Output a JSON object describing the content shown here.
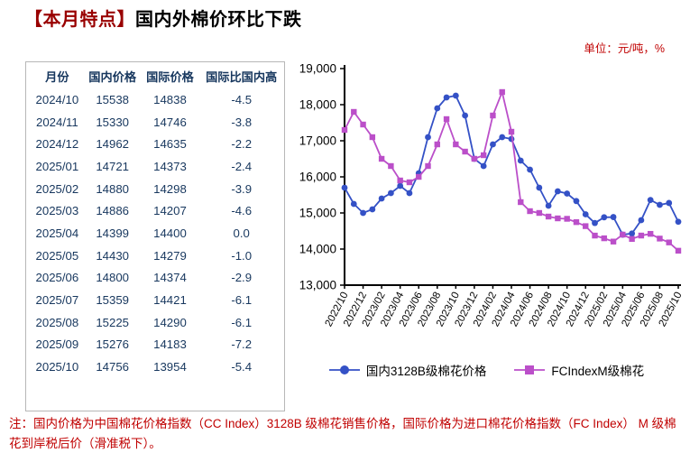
{
  "header": {
    "tag": "【本月特点】",
    "title": "国内外棉价环比下跌",
    "unit": "单位：元/吨，%"
  },
  "table": {
    "columns": [
      "月份",
      "国内价格",
      "国际价格",
      "国际比国内高"
    ],
    "rows": [
      [
        "2024/10",
        "15538",
        "14838",
        "-4.5"
      ],
      [
        "2024/11",
        "15330",
        "14746",
        "-3.8"
      ],
      [
        "2024/12",
        "14962",
        "14635",
        "-2.2"
      ],
      [
        "2025/01",
        "14721",
        "14373",
        "-2.4"
      ],
      [
        "2025/02",
        "14880",
        "14298",
        "-3.9"
      ],
      [
        "2025/03",
        "14886",
        "14207",
        "-4.6"
      ],
      [
        "2025/04",
        "14399",
        "14400",
        "0.0"
      ],
      [
        "2025/05",
        "14430",
        "14279",
        "-1.0"
      ],
      [
        "2025/06",
        "14800",
        "14374",
        "-2.9"
      ],
      [
        "2025/07",
        "15359",
        "14421",
        "-6.1"
      ],
      [
        "2025/08",
        "15225",
        "14290",
        "-6.1"
      ],
      [
        "2025/09",
        "15276",
        "14183",
        "-7.2"
      ],
      [
        "2025/10",
        "14756",
        "13954",
        "-5.4"
      ]
    ]
  },
  "chart_data": {
    "type": "line",
    "x": [
      "2022/10",
      "2022/11",
      "2022/12",
      "2023/01",
      "2023/02",
      "2023/03",
      "2023/04",
      "2023/05",
      "2023/06",
      "2023/07",
      "2023/08",
      "2023/09",
      "2023/10",
      "2023/11",
      "2023/12",
      "2024/01",
      "2024/02",
      "2024/03",
      "2024/04",
      "2024/05",
      "2024/06",
      "2024/07",
      "2024/08",
      "2024/09",
      "2024/10",
      "2024/11",
      "2024/12",
      "2025/01",
      "2025/02",
      "2025/03",
      "2025/04",
      "2025/05",
      "2025/06",
      "2025/07",
      "2025/08",
      "2025/09",
      "2025/10"
    ],
    "x_tick_every": 2,
    "ylim": [
      13000,
      19000
    ],
    "ytick_step": 1000,
    "grid": false,
    "legend_position": "bottom",
    "series": [
      {
        "name": "国内3128B级棉花价格",
        "color": "#3451c6",
        "marker": "circle",
        "values": [
          15700,
          15250,
          15000,
          15100,
          15400,
          15550,
          15750,
          15550,
          16100,
          17100,
          17900,
          18200,
          18250,
          17700,
          16500,
          16300,
          16900,
          17100,
          17050,
          16450,
          16200,
          15700,
          15200,
          15600,
          15538,
          15330,
          14962,
          14721,
          14880,
          14886,
          14399,
          14430,
          14800,
          15359,
          15225,
          15276,
          14756
        ]
      },
      {
        "name": "FCIndexM级棉花",
        "color": "#bb4fc9",
        "marker": "square",
        "values": [
          17300,
          17800,
          17450,
          17100,
          16500,
          16300,
          15900,
          15850,
          16000,
          16300,
          16900,
          17600,
          16900,
          16700,
          16500,
          16600,
          17700,
          18350,
          17250,
          15300,
          15050,
          15000,
          14900,
          14850,
          14838,
          14746,
          14635,
          14373,
          14298,
          14207,
          14400,
          14279,
          14374,
          14421,
          14290,
          14183,
          13954
        ]
      }
    ]
  },
  "note": "注：国内价格为中国棉花价格指数（CC Index）3128B 级棉花销售价格，国际价格为进口棉花价格指数（FC Index） M 级棉花到岸税后价（滑准税下）。"
}
